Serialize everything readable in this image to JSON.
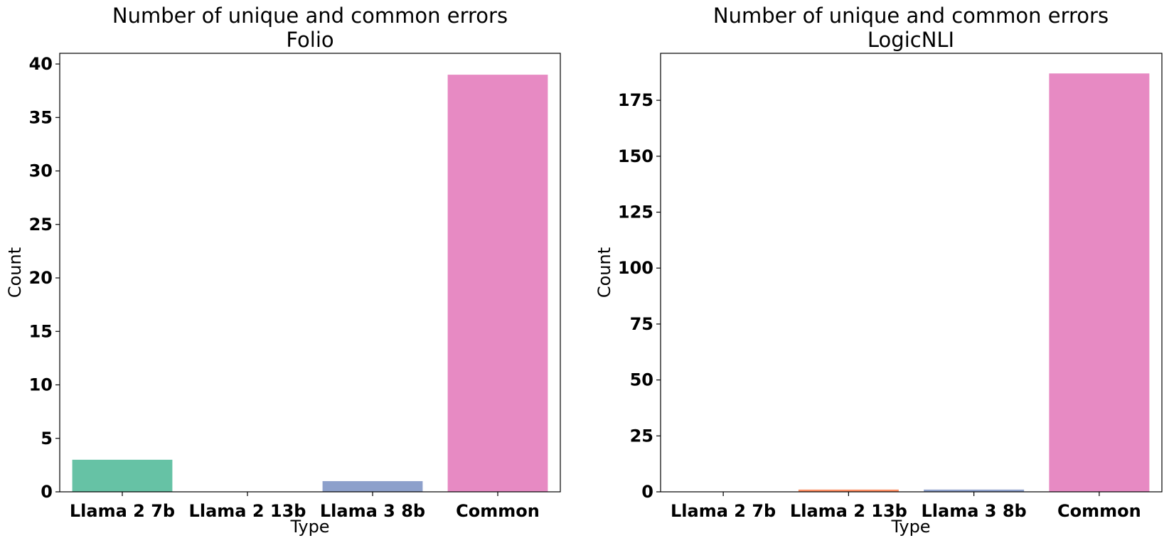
{
  "chart_data": [
    {
      "type": "bar",
      "title": "Number of unique and common errors",
      "subtitle": "Folio",
      "xlabel": "Type",
      "ylabel": "Count",
      "categories": [
        "Llama 2 7b",
        "Llama 2 13b",
        "Llama 3 8b",
        "Common"
      ],
      "values": [
        3,
        0,
        1,
        39
      ],
      "colors": [
        "#66c2a5",
        "#fc8d62",
        "#8da0cb",
        "#e78ac3"
      ],
      "ylim": [
        0,
        41
      ],
      "yticks": [
        0,
        5,
        10,
        15,
        20,
        25,
        30,
        35,
        40
      ],
      "grid": false,
      "legend": "none"
    },
    {
      "type": "bar",
      "title": "Number of unique and common errors",
      "subtitle": "LogicNLI",
      "xlabel": "Type",
      "ylabel": "Count",
      "categories": [
        "Llama 2 7b",
        "Llama 2 13b",
        "Llama 3 8b",
        "Common"
      ],
      "values": [
        0,
        1,
        1,
        187
      ],
      "colors": [
        "#66c2a5",
        "#fc8d62",
        "#8da0cb",
        "#e78ac3"
      ],
      "ylim": [
        0,
        196
      ],
      "yticks": [
        0,
        25,
        50,
        75,
        100,
        125,
        150,
        175
      ],
      "grid": false,
      "legend": "none"
    }
  ]
}
